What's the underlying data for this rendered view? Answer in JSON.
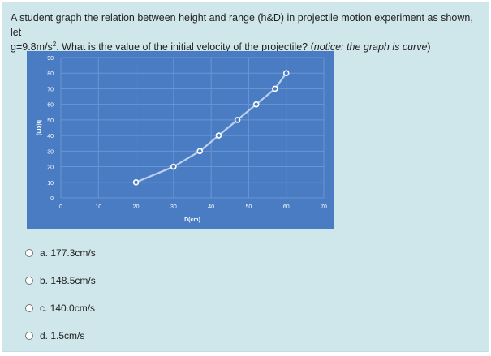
{
  "question": {
    "line1": "A student graph the relation between height and range (h&D) in projectile motion experiment as shown, let",
    "line2_prefix": "g=9.8m/s",
    "line2_sup": "2",
    "line2_middle": ". What is the value of the initial velocity of the projectile? (",
    "line2_note": "notice: the graph is curve",
    "line2_suffix": ")"
  },
  "chart_data": {
    "type": "line",
    "xlabel": "D(cm)",
    "ylabel": "h(cm)",
    "xlim": [
      0,
      70
    ],
    "ylim": [
      0,
      90
    ],
    "x_ticks": [
      "0",
      "10",
      "20",
      "30",
      "40",
      "50",
      "60",
      "70"
    ],
    "y_ticks": [
      "0",
      "10",
      "20",
      "30",
      "40",
      "50",
      "60",
      "70",
      "80",
      "90"
    ],
    "grid": true,
    "x": [
      20,
      30,
      37,
      42,
      47,
      52,
      57,
      60
    ],
    "y": [
      10,
      20,
      30,
      40,
      50,
      60,
      70,
      80
    ],
    "colors": {
      "background": "#4a7cc4",
      "line": "#bcd0ea",
      "marker": "#ffffff"
    }
  },
  "options": [
    {
      "label": "a. 177.3cm/s"
    },
    {
      "label": "b. 148.5cm/s"
    },
    {
      "label": "c. 140.0cm/s"
    },
    {
      "label": "d. 1.5cm/s"
    }
  ]
}
